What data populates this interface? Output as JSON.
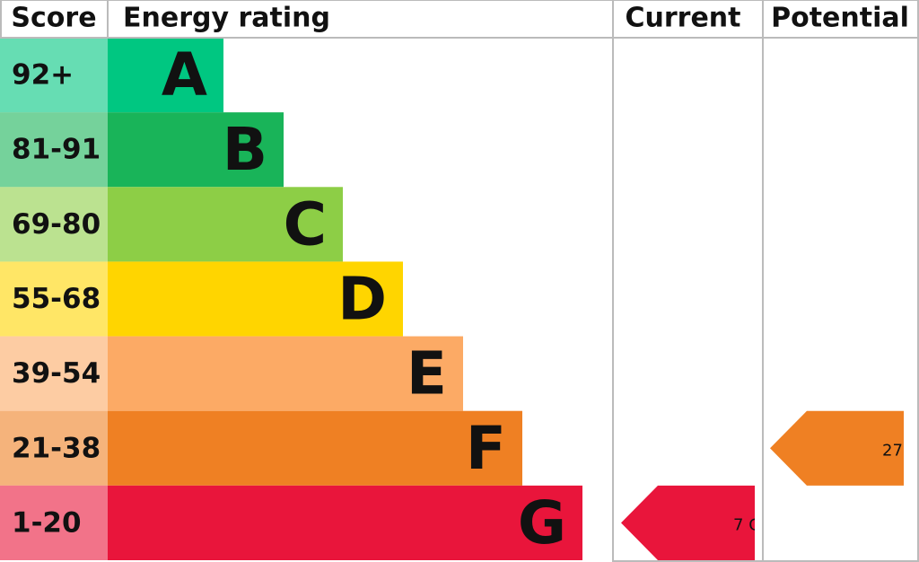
{
  "header": {
    "score": "Score",
    "rating": "Energy rating",
    "current": "Current",
    "potential": "Potential"
  },
  "bands": [
    {
      "range": "92+",
      "letter": "A",
      "color": "#00c781"
    },
    {
      "range": "81-91",
      "letter": "B",
      "color": "#19b459"
    },
    {
      "range": "69-80",
      "letter": "C",
      "color": "#8dce46"
    },
    {
      "range": "55-68",
      "letter": "D",
      "color": "#ffd500"
    },
    {
      "range": "39-54",
      "letter": "E",
      "color": "#fcaa65"
    },
    {
      "range": "21-38",
      "letter": "F",
      "color": "#ef8023"
    },
    {
      "range": "1-20",
      "letter": "G",
      "color": "#e9153b"
    }
  ],
  "current": {
    "score": 7,
    "band": "G"
  },
  "potential": {
    "score": 27
  }
}
